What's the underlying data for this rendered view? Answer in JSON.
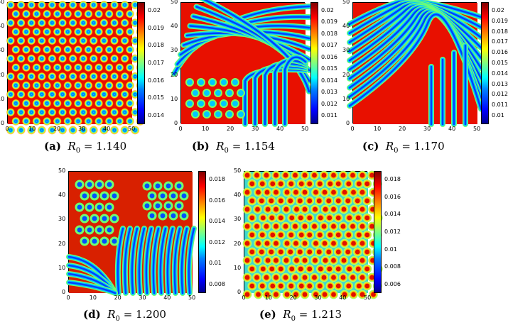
{
  "figure": {
    "axis_ticks": [
      "0",
      "10",
      "20",
      "30",
      "40",
      "50"
    ],
    "panels": [
      {
        "id": "a",
        "label": "(a)",
        "var": "R",
        "sub": "0",
        "value": "= 1.140",
        "pattern": "spots-hex",
        "cbar_ticks": [
          "0.02",
          "0.019",
          "0.018",
          "0.017",
          "0.016",
          "0.015",
          "0.014"
        ]
      },
      {
        "id": "b",
        "label": "(b)",
        "var": "R",
        "sub": "0",
        "value": "= 1.154",
        "pattern": "stripes-mixed",
        "cbar_ticks": [
          "0.02",
          "0.019",
          "0.018",
          "0.017",
          "0.016",
          "0.015",
          "0.014",
          "0.013",
          "0.012",
          "0.011"
        ]
      },
      {
        "id": "c",
        "label": "(c)",
        "var": "R",
        "sub": "0",
        "value": "= 1.170",
        "pattern": "labyrinth",
        "cbar_ticks": [
          "0.02",
          "0.019",
          "0.018",
          "0.017",
          "0.016",
          "0.015",
          "0.014",
          "0.013",
          "0.012",
          "0.011",
          "0.01"
        ]
      },
      {
        "id": "d",
        "label": "(d)",
        "var": "R",
        "sub": "0",
        "value": "= 1.200",
        "pattern": "stripes-spots",
        "cbar_ticks": [
          "0.018",
          "0.016",
          "0.014",
          "0.012",
          "0.01",
          "0.008"
        ]
      },
      {
        "id": "e",
        "label": "(e)",
        "var": "R",
        "sub": "0",
        "value": "= 1.213",
        "pattern": "spots-cold",
        "cbar_ticks": [
          "0.018",
          "0.016",
          "0.014",
          "0.012",
          "0.01",
          "0.008",
          "0.006"
        ]
      }
    ]
  }
}
